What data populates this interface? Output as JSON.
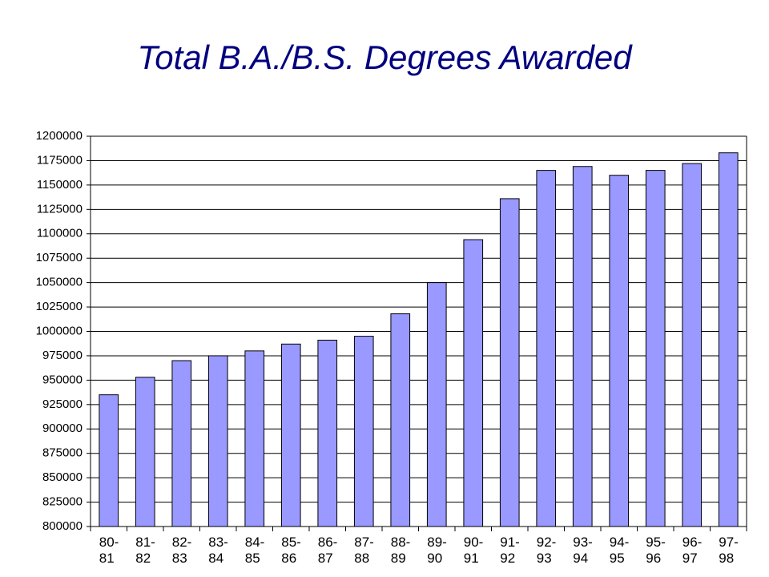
{
  "chart_data": {
    "type": "bar",
    "title": "Total B.A./B.S. Degrees Awarded",
    "categories": [
      "80-81",
      "81-82",
      "82-83",
      "83-84",
      "84-85",
      "85-86",
      "86-87",
      "87-88",
      "88-89",
      "89-90",
      "90-91",
      "91-92",
      "92-93",
      "93-94",
      "94-95",
      "95-96",
      "96-97",
      "97-98"
    ],
    "values": [
      935000,
      953000,
      970000,
      975000,
      980000,
      987000,
      991000,
      995000,
      1018000,
      1050000,
      1094000,
      1136000,
      1165000,
      1169000,
      1160000,
      1165000,
      1172000,
      1183000
    ],
    "color": "#9999ff",
    "ylim": [
      800000,
      1200000
    ],
    "yticks": [
      800000,
      825000,
      850000,
      875000,
      900000,
      925000,
      950000,
      975000,
      1000000,
      1025000,
      1050000,
      1075000,
      1100000,
      1125000,
      1150000,
      1175000,
      1200000
    ],
    "grid": true
  }
}
